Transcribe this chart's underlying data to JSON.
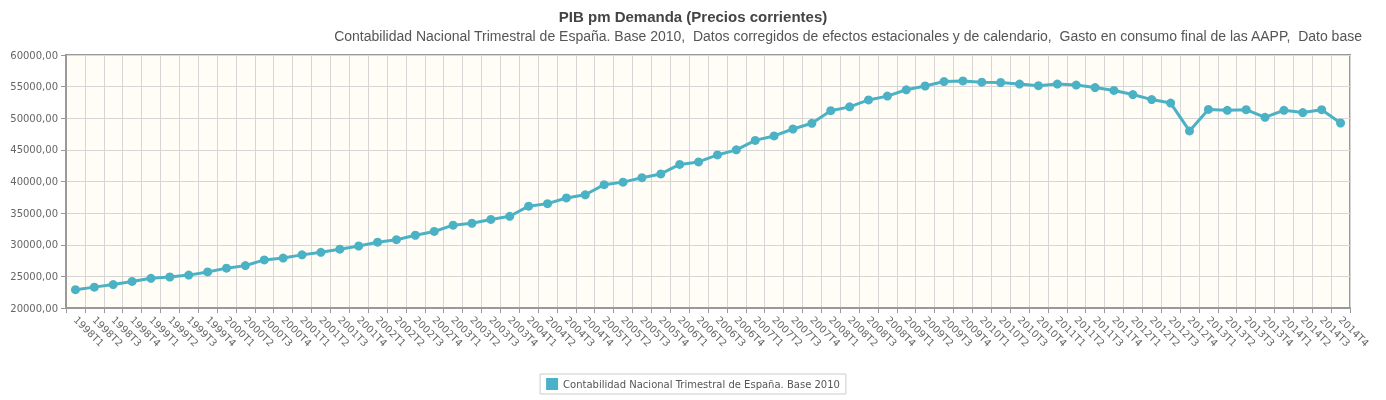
{
  "chart_data": {
    "type": "line",
    "title": "PIB pm Demanda (Precios corrientes)",
    "subtitle": "Contabilidad Nacional Trimestral de España. Base 2010,  Datos corregidos de efectos estacionales y de calendario,  Gasto en consumo final de las AAPP,  Dato base",
    "categories": [
      "1998T1",
      "1998T2",
      "1998T3",
      "1998T4",
      "1999T1",
      "1999T2",
      "1999T3",
      "1999T4",
      "2000T1",
      "2000T2",
      "2000T3",
      "2000T4",
      "2001T1",
      "2001T2",
      "2001T3",
      "2001T4",
      "2002T1",
      "2002T2",
      "2002T3",
      "2002T4",
      "2003T1",
      "2003T2",
      "2003T3",
      "2003T4",
      "2004T1",
      "2004T2",
      "2004T3",
      "2004T4",
      "2005T1",
      "2005T2",
      "2005T3",
      "2005T4",
      "2006T1",
      "2006T2",
      "2006T3",
      "2006T4",
      "2007T1",
      "2007T2",
      "2007T3",
      "2007T4",
      "2008T1",
      "2008T2",
      "2008T3",
      "2008T4",
      "2009T1",
      "2009T2",
      "2009T3",
      "2009T4",
      "2010T1",
      "2010T2",
      "2010T3",
      "2010T4",
      "2011T1",
      "2011T2",
      "2011T3",
      "2011T4",
      "2012T1",
      "2012T2",
      "2012T3",
      "2012T4",
      "2013T1",
      "2013T2",
      "2013T3",
      "2013T4",
      "2014T1",
      "2014T2",
      "2014T3",
      "2014T4"
    ],
    "series": [
      {
        "name": "Contabilidad Nacional Trimestral de España. Base 2010",
        "color": "#4bb2c5",
        "values": [
          22900,
          23300,
          23700,
          24200,
          24700,
          24900,
          25200,
          25700,
          26300,
          26700,
          27600,
          27900,
          28400,
          28800,
          29300,
          29800,
          30400,
          30800,
          31500,
          32100,
          33100,
          33400,
          34000,
          34500,
          36100,
          36500,
          37400,
          37900,
          39500,
          39900,
          40600,
          41200,
          42700,
          43100,
          44200,
          45000,
          46500,
          47200,
          48300,
          49200,
          51200,
          51800,
          52900,
          53500,
          54500,
          55100,
          55800,
          55900,
          55700,
          55650,
          55400,
          55150,
          55400,
          55250,
          54850,
          54400,
          53750,
          52950,
          52400,
          48000,
          51400,
          51250,
          51350,
          50150,
          51250,
          50900,
          51350,
          49250
        ]
      }
    ],
    "ylim": [
      20000,
      60000
    ],
    "yticks": [
      {
        "value": 20000,
        "label": "20000,00"
      },
      {
        "value": 25000,
        "label": "25000,00"
      },
      {
        "value": 30000,
        "label": "30000,00"
      },
      {
        "value": 35000,
        "label": "35000,00"
      },
      {
        "value": 40000,
        "label": "40000,00"
      },
      {
        "value": 45000,
        "label": "45000,00"
      },
      {
        "value": 50000,
        "label": "50000,00"
      },
      {
        "value": 55000,
        "label": "55000,00"
      },
      {
        "value": 60000,
        "label": "60000,00"
      }
    ],
    "grid": true,
    "legend": "bottom",
    "marker": "circle",
    "line_style": "solid"
  }
}
